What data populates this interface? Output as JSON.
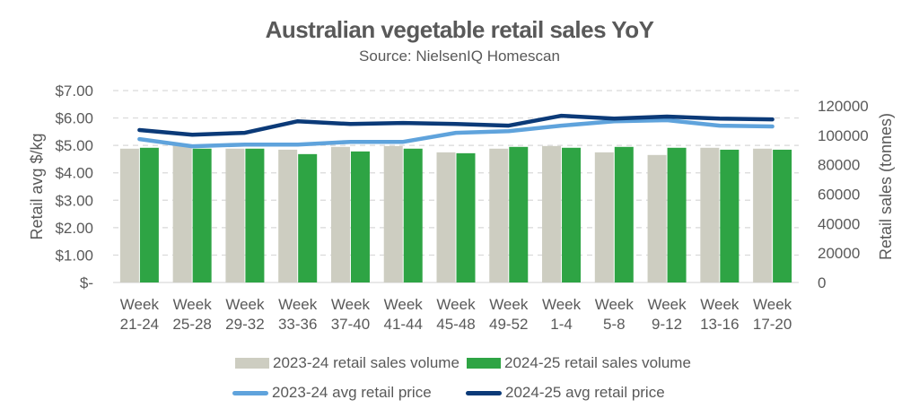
{
  "chart_data": {
    "type": "bar",
    "combo": "bar+line (dual axis)",
    "title": "Australian vegetable retail sales YoY",
    "subtitle": "Source: NielsenIQ Homescan",
    "categories": [
      [
        "Week",
        "21-24"
      ],
      [
        "Week",
        "25-28"
      ],
      [
        "Week",
        "29-32"
      ],
      [
        "Week",
        "33-36"
      ],
      [
        "Week",
        "37-40"
      ],
      [
        "Week",
        "41-44"
      ],
      [
        "Week",
        "45-48"
      ],
      [
        "Week",
        "49-52"
      ],
      [
        "Week",
        "1-4"
      ],
      [
        "Week",
        "5-8"
      ],
      [
        "Week",
        "9-12"
      ],
      [
        "Week",
        "13-16"
      ],
      [
        "Week",
        "17-20"
      ]
    ],
    "y_left": {
      "label": "Retail avg $/kg",
      "ylim": [
        0,
        7
      ],
      "ticks": [
        0,
        1,
        2,
        3,
        4,
        5,
        6,
        7
      ],
      "tick_labels": [
        "$-",
        "$1.00",
        "$2.00",
        "$3.00",
        "$4.00",
        "$5.00",
        "$6.00",
        "$7.00"
      ]
    },
    "y_right": {
      "label": "Retail sales (tonnes)",
      "ylim": [
        0,
        120000
      ],
      "ticks": [
        0,
        20000,
        40000,
        60000,
        80000,
        100000,
        120000
      ],
      "tick_labels": [
        "0",
        "20000",
        "40000",
        "60000",
        "80000",
        "100000",
        "120000"
      ]
    },
    "grid": true,
    "legend_position": "bottom",
    "series": [
      {
        "name": "2023-24 retail sales volume",
        "type": "bar",
        "axis": "right",
        "color": "#cdcdc1",
        "values": [
          90900,
          93300,
          90900,
          90200,
          92100,
          92700,
          88400,
          90900,
          92700,
          88400,
          86600,
          91500,
          90900
        ]
      },
      {
        "name": "2024-25 retail sales volume",
        "type": "bar",
        "axis": "right",
        "color": "#2ea444",
        "values": [
          91500,
          90900,
          90900,
          87200,
          89000,
          90900,
          87800,
          92100,
          91500,
          92100,
          91500,
          90200,
          90200
        ]
      },
      {
        "name": "2023-24 avg retail price",
        "type": "line",
        "axis": "left",
        "color": "#5fa3dc",
        "values": [
          5.23,
          4.97,
          5.03,
          5.03,
          5.13,
          5.13,
          5.46,
          5.52,
          5.72,
          5.88,
          5.92,
          5.72,
          5.69
        ]
      },
      {
        "name": "2024-25 avg retail price",
        "type": "line",
        "axis": "left",
        "color": "#0b3a78",
        "values": [
          5.56,
          5.39,
          5.46,
          5.88,
          5.78,
          5.82,
          5.78,
          5.72,
          6.08,
          5.98,
          6.05,
          5.98,
          5.95
        ]
      }
    ]
  }
}
